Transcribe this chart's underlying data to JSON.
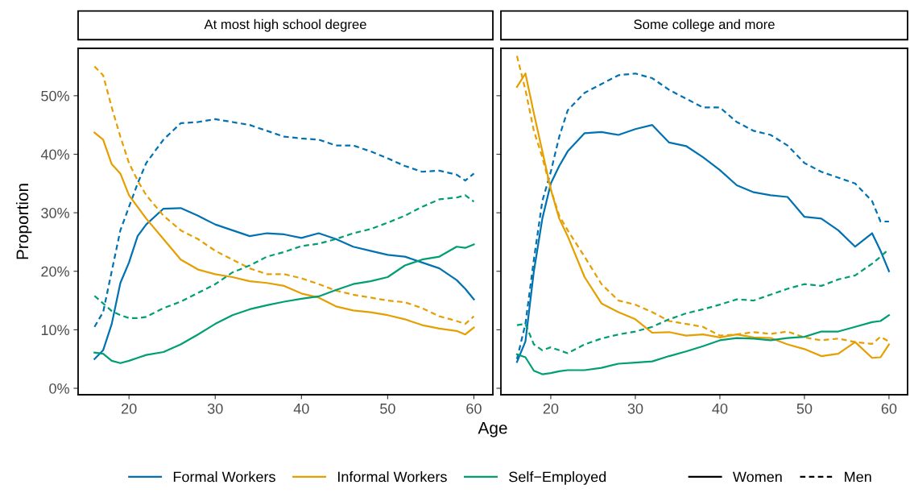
{
  "chart_data": [
    {
      "type": "line",
      "title": "At most high school degree",
      "ylabel": "Proportion",
      "xlabel": "Age",
      "legend": "bottom",
      "grid": false,
      "annotations": [
        "Women",
        "Men"
      ],
      "x": [
        16,
        17,
        18,
        19,
        20,
        21,
        22,
        24,
        26,
        28,
        30,
        32,
        34,
        36,
        38,
        40,
        42,
        44,
        46,
        48,
        50,
        52,
        54,
        56,
        58,
        59,
        60
      ],
      "xlim": [
        14.1,
        62.2
      ],
      "xticks": [
        20,
        30,
        40,
        50,
        60
      ],
      "ylim": [
        -1.1,
        58.1
      ],
      "yticks": [
        {
          "value": 0,
          "label": "0%"
        },
        {
          "value": 10,
          "label": "10%"
        },
        {
          "value": 20,
          "label": "20%"
        },
        {
          "value": 30,
          "label": "30%"
        },
        {
          "value": 40,
          "label": "40%"
        },
        {
          "value": 50,
          "label": "50%"
        }
      ],
      "series": [
        {
          "name": "Formal Workers",
          "line_style": "solid",
          "color": "#0072b2",
          "values": [
            5,
            6.5,
            11,
            18,
            21.5,
            26,
            28,
            30.7,
            30.8,
            29.5,
            28,
            27,
            26,
            26.5,
            26.3,
            25.7,
            26.5,
            25.5,
            24.2,
            23.5,
            22.8,
            22.5,
            21.5,
            20.5,
            18.5,
            17,
            15.2
          ]
        },
        {
          "line_style": "dashed",
          "color": "#0072b2",
          "values": [
            10.5,
            13,
            20,
            27,
            31,
            35,
            38.5,
            42.5,
            45.3,
            45.5,
            46,
            45.5,
            45,
            44,
            43,
            42.7,
            42.5,
            41.5,
            41.5,
            40.5,
            39.3,
            38,
            37,
            37.2,
            36.5,
            35.5,
            36.7
          ]
        },
        {
          "name": "Informal Workers",
          "line_style": "solid",
          "color": "#e69f00",
          "values": [
            43.7,
            42.5,
            38.3,
            36.7,
            33,
            31,
            29,
            25.5,
            22,
            20.3,
            19.5,
            19,
            18.3,
            18,
            17.5,
            16.2,
            15.5,
            14,
            13.3,
            13,
            12.5,
            11.8,
            10.8,
            10.2,
            9.8,
            9.2,
            10.4
          ]
        },
        {
          "line_style": "dashed",
          "color": "#e69f00",
          "values": [
            55,
            53.5,
            48,
            43,
            38.5,
            35.5,
            33,
            29.5,
            27,
            25.5,
            23.5,
            22,
            20.5,
            19.5,
            19.5,
            18.8,
            17.8,
            16.7,
            16,
            15.5,
            15,
            14.7,
            13.7,
            12.3,
            11.5,
            11,
            12.3
          ]
        },
        {
          "name": "Self−Employed",
          "line_style": "solid",
          "color": "#009e73",
          "values": [
            6.1,
            5.9,
            4.7,
            4.3,
            4.7,
            5.2,
            5.7,
            6.2,
            7.5,
            9.2,
            11,
            12.5,
            13.5,
            14.2,
            14.8,
            15.3,
            15.7,
            16.8,
            17.8,
            18.3,
            19,
            21,
            22,
            22.5,
            24.2,
            24,
            24.6
          ]
        },
        {
          "line_style": "dashed",
          "color": "#009e73",
          "values": [
            15.8,
            14.5,
            13.2,
            12.5,
            12,
            12,
            12.2,
            13.7,
            14.8,
            16.3,
            17.8,
            19.8,
            21,
            22.5,
            23.3,
            24.3,
            24.7,
            25.5,
            26.5,
            27.2,
            28.3,
            29.5,
            31,
            32.3,
            32.6,
            33,
            31.9
          ]
        }
      ]
    },
    {
      "type": "line",
      "title": "Some college and more",
      "legend": false,
      "grid": false,
      "tick_labels": "x",
      "x": [
        16,
        17,
        18,
        19,
        20,
        21,
        22,
        24,
        26,
        28,
        30,
        32,
        34,
        36,
        38,
        40,
        42,
        44,
        46,
        48,
        50,
        52,
        54,
        56,
        58,
        59,
        60
      ],
      "xlim": [
        14.1,
        62.2
      ],
      "xticks": [
        20,
        30,
        40,
        50,
        60
      ],
      "ylim": [
        -1.1,
        58.1
      ],
      "yticks": [
        {
          "value": 0,
          "label": null
        },
        {
          "value": 10,
          "label": null
        },
        {
          "value": 20,
          "label": null
        },
        {
          "value": 30,
          "label": null
        },
        {
          "value": 40,
          "label": null
        },
        {
          "value": 50,
          "label": null
        }
      ],
      "series": [
        {
          "line_style": "solid",
          "color": "#0072b2",
          "values": [
            4.5,
            8,
            20,
            29,
            35,
            38,
            40.5,
            43.6,
            43.8,
            43.3,
            44.3,
            45,
            42,
            41.4,
            39.5,
            37.3,
            34.7,
            33.5,
            33,
            32.7,
            29.3,
            29,
            27,
            24.2,
            26.5,
            23.5,
            20
          ]
        },
        {
          "line_style": "dashed",
          "color": "#0072b2",
          "values": [
            5,
            11,
            22,
            32,
            37,
            43,
            47.5,
            50.5,
            52,
            53.5,
            53.8,
            53,
            51,
            49.5,
            48,
            48,
            45.5,
            44,
            43.3,
            41.5,
            38.5,
            37,
            36,
            35,
            32,
            28.5,
            28.5
          ]
        },
        {
          "line_style": "solid",
          "color": "#e69f00",
          "values": [
            51.5,
            53.8,
            47,
            40.5,
            34,
            29,
            26,
            19,
            14.5,
            13,
            11.8,
            9.5,
            9.6,
            9,
            9.2,
            8.7,
            9.2,
            8.7,
            8.6,
            7.5,
            6.7,
            5.5,
            5.9,
            7.9,
            5.2,
            5.3,
            7.5
          ]
        },
        {
          "line_style": "dashed",
          "color": "#e69f00",
          "values": [
            56.8,
            51,
            44,
            39.5,
            34,
            29.5,
            27,
            22.5,
            17.8,
            15,
            14.3,
            13,
            11.5,
            11,
            10.5,
            9,
            9.2,
            9.6,
            9.3,
            9.7,
            8.7,
            8.2,
            8.5,
            7.9,
            7.6,
            8.8,
            8
          ]
        },
        {
          "line_style": "solid",
          "color": "#009e73",
          "values": [
            5.8,
            5.3,
            3,
            2.4,
            2.6,
            2.9,
            3.1,
            3.1,
            3.5,
            4.2,
            4.4,
            4.6,
            5.5,
            6.3,
            7.2,
            8.2,
            8.6,
            8.5,
            8.2,
            8.6,
            8.8,
            9.7,
            9.7,
            10.5,
            11.3,
            11.5,
            12.5
          ]
        },
        {
          "line_style": "dashed",
          "color": "#009e73",
          "values": [
            10.8,
            11,
            7.5,
            6.5,
            7,
            6.5,
            6,
            7.5,
            8.5,
            9.2,
            9.7,
            10.5,
            11.8,
            12.8,
            13.5,
            14.3,
            15.2,
            15,
            16,
            17,
            17.8,
            17.5,
            18.6,
            19.3,
            21.3,
            22.5,
            23.8
          ]
        }
      ]
    }
  ]
}
